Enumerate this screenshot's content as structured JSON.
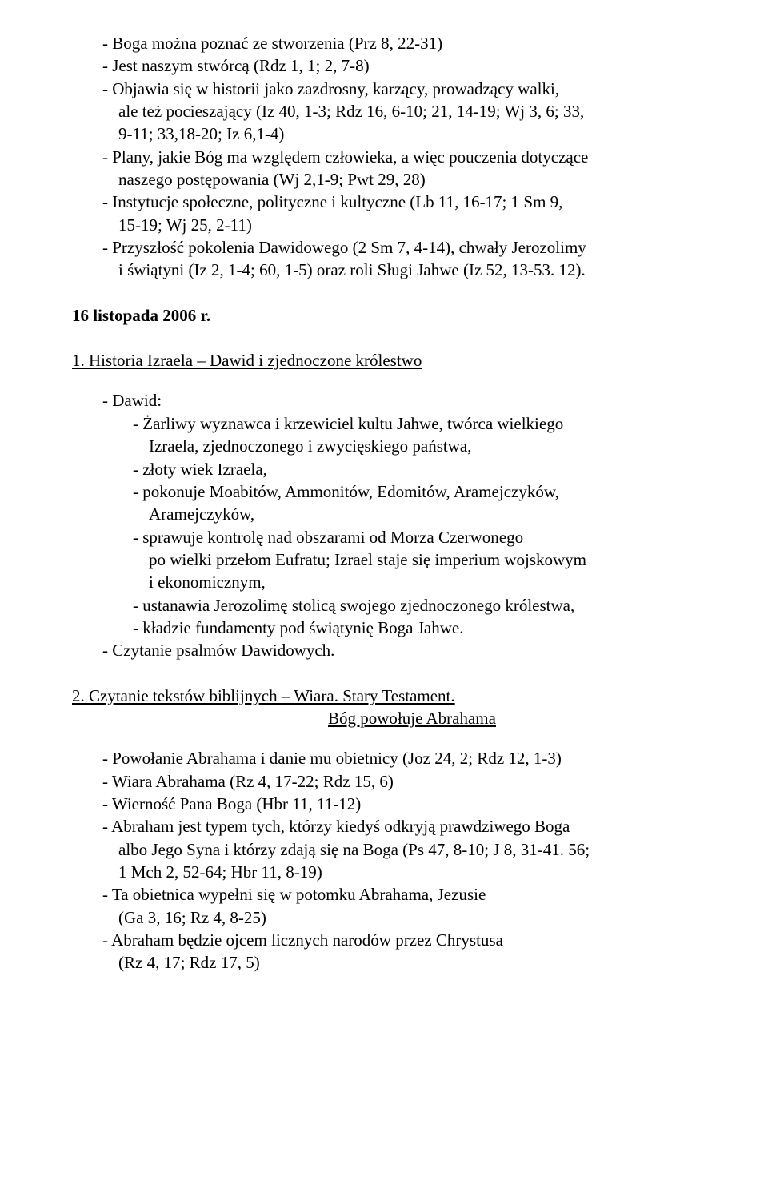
{
  "block1": {
    "lines": [
      "- Boga można poznać ze stworzenia (Prz 8, 22-31)",
      "- Jest naszym stwórcą (Rdz 1, 1; 2, 7-8)",
      "- Objawia się w historii jako zazdrosny, karzący, prowadzący walki,",
      "  ale też pocieszający (Iz 40, 1-3; Rdz 16, 6-10; 21, 14-19; Wj 3, 6; 33,",
      "  9-11; 33,18-20; Iz 6,1-4)",
      "- Plany, jakie Bóg ma względem człowieka, a więc pouczenia dotyczące",
      "  naszego postępowania (Wj 2,1-9; Pwt 29, 28)",
      "- Instytucje społeczne, polityczne i kultyczne (Lb 11, 16-17; 1 Sm 9,",
      "  15-19; Wj 25, 2-11)",
      "- Przyszłość pokolenia Dawidowego (2 Sm 7, 4-14), chwały Jerozolimy",
      "  i świątyni (Iz 2, 1-4; 60, 1-5) oraz roli Sługi Jahwe (Iz 52, 13-53. 12)."
    ]
  },
  "date": "16 listopada 2006 r.",
  "sec1": {
    "heading": "1. Historia Izraela – Dawid i zjednoczone królestwo",
    "dawid_label": "- Dawid:",
    "dawid_items": [
      "- Żarliwy wyznawca i krzewiciel kultu Jahwe, twórca wielkiego",
      "  Izraela, zjednoczonego i zwycięskiego państwa,",
      "- złoty wiek Izraela,",
      "- pokonuje Moabitów, Ammonitów, Edomitów, Aramejczyków,",
      "  Aramejczyków,",
      "- sprawuje kontrolę nad obszarami od Morza Czerwonego",
      "  po wielki przełom Eufratu; Izrael staje się imperium wojskowym",
      "  i ekonomicznym,",
      "- ustanawia Jerozolimę stolicą swojego zjednoczonego królestwa,",
      "- kładzie fundamenty pod świątynię Boga Jahwe."
    ],
    "psalms": "- Czytanie psalmów Dawidowych."
  },
  "sec2": {
    "heading_line1": "2. Czytanie tekstów biblijnych – Wiara. Stary Testament.",
    "heading_line2": "Bóg powołuje Abrahama",
    "items": [
      "- Powołanie Abrahama i danie mu obietnicy (Joz 24, 2; Rdz 12, 1-3)",
      "- Wiara Abrahama (Rz 4, 17-22; Rdz 15, 6)",
      "- Wierność Pana Boga (Hbr 11, 11-12)",
      "- Abraham jest typem tych, którzy kiedyś odkryją prawdziwego Boga",
      "  albo Jego Syna i którzy zdają się na Boga (Ps 47, 8-10; J 8, 31-41. 56;",
      "  1 Mch 2, 52-64; Hbr 11, 8-19)",
      "- Ta obietnica wypełni się w potomku Abrahama, Jezusie",
      "  (Ga 3, 16; Rz 4, 8-25)",
      "- Abraham będzie ojcem licznych narodów przez Chrystusa",
      "  (Rz 4, 17; Rdz 17, 5)"
    ]
  }
}
